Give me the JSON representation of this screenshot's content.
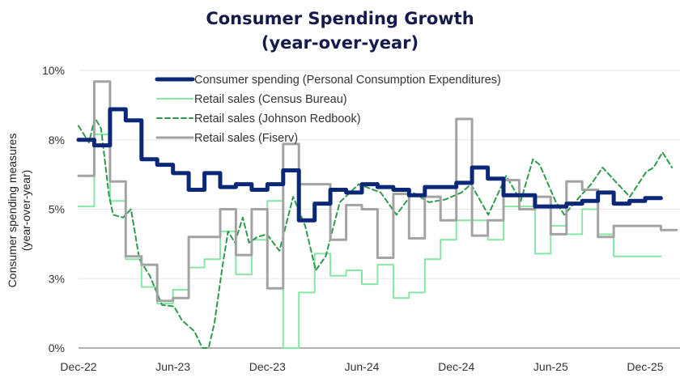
{
  "chart_data": {
    "type": "line",
    "title": [
      "Consumer Spending Growth",
      "(year-over-year)"
    ],
    "xlabel": "",
    "ylabel": [
      "Consumer spending measures",
      "(year-over-year)"
    ],
    "ylim": [
      0,
      10
    ],
    "yticks": [
      0,
      2.5,
      5,
      7.5,
      10
    ],
    "ytick_labels": [
      "0%",
      "3%",
      "5%",
      "8%",
      "10%"
    ],
    "xlim": [
      "2022-12-01",
      "2026-01-30"
    ],
    "xticks": [
      "2022-12-01",
      "2023-06-01",
      "2023-12-01",
      "2024-06-01",
      "2024-12-01",
      "2025-06-01",
      "2025-12-01"
    ],
    "xtick_labels": [
      "Dec-22",
      "Jun-23",
      "Dec-23",
      "Jun-24",
      "Dec-24",
      "Jun-25",
      "Dec-25"
    ],
    "grid": "horizontal",
    "legend_position": "top",
    "months": [
      "2022-12",
      "2023-01",
      "2023-02",
      "2023-03",
      "2023-04",
      "2023-05",
      "2023-06",
      "2023-07",
      "2023-08",
      "2023-09",
      "2023-10",
      "2023-11",
      "2023-12",
      "2024-01",
      "2024-02",
      "2024-03",
      "2024-04",
      "2024-05",
      "2024-06",
      "2024-07",
      "2024-08",
      "2024-09",
      "2024-10",
      "2024-11",
      "2024-12",
      "2025-01",
      "2025-02",
      "2025-03",
      "2025-04",
      "2025-05",
      "2025-06",
      "2025-07",
      "2025-08",
      "2025-09",
      "2025-10",
      "2025-11",
      "2025-12",
      "2026-01"
    ],
    "series": [
      {
        "name": "Consumer spending (Personal Consumption Expenditures)",
        "color": "#0b2878",
        "style": "solid-thick",
        "step": true,
        "values": [
          7.5,
          7.3,
          8.6,
          8.2,
          6.8,
          6.6,
          6.3,
          5.7,
          6.3,
          5.8,
          5.9,
          5.7,
          5.9,
          6.4,
          4.6,
          5.2,
          5.7,
          5.6,
          5.9,
          5.8,
          5.7,
          5.5,
          5.8,
          5.8,
          5.95,
          6.5,
          6.1,
          5.5,
          5.5,
          5.1,
          5.1,
          5.2,
          5.3,
          5.6,
          5.2,
          5.3,
          5.4
        ]
      },
      {
        "name": "Retail sales (Census Bureau)",
        "color": "#86e6a6",
        "style": "solid",
        "step": true,
        "values": [
          5.1,
          7.7,
          5.3,
          3.2,
          2.2,
          1.6,
          2.1,
          2.9,
          3.2,
          4.2,
          2.65,
          3.9,
          5.3,
          0,
          2.0,
          3.4,
          2.6,
          2.8,
          2.3,
          3.0,
          1.8,
          2.0,
          3.2,
          3.9,
          4.6,
          4.6,
          3.9,
          5.1,
          5.1,
          3.4,
          4.4,
          4.1,
          5.0,
          4.1,
          3.3,
          3.3,
          3.3
        ]
      },
      {
        "name": "Retail sales (Johnson Redbook)",
        "color": "#2f9a4c",
        "style": "dashed",
        "step": false,
        "points": [
          [
            "2022-12-01",
            8.0
          ],
          [
            "2022-12-21",
            7.4
          ],
          [
            "2023-01-02",
            8.3
          ],
          [
            "2023-01-14",
            7.9
          ],
          [
            "2023-01-29",
            5.5
          ],
          [
            "2023-02-07",
            4.8
          ],
          [
            "2023-02-26",
            4.7
          ],
          [
            "2023-03-11",
            5.0
          ],
          [
            "2023-03-27",
            3.2
          ],
          [
            "2023-04-17",
            2.6
          ],
          [
            "2023-05-10",
            1.55
          ],
          [
            "2023-06-03",
            1.5
          ],
          [
            "2023-06-18",
            1.0
          ],
          [
            "2023-07-12",
            0.6
          ],
          [
            "2023-07-27",
            0
          ],
          [
            "2023-08-09",
            0
          ],
          [
            "2023-08-20",
            0.9
          ],
          [
            "2023-09-05",
            2.9
          ],
          [
            "2023-09-16",
            4.2
          ],
          [
            "2023-09-29",
            3.8
          ],
          [
            "2023-10-14",
            4.7
          ],
          [
            "2023-10-26",
            3.8
          ],
          [
            "2023-11-12",
            4.0
          ],
          [
            "2023-11-30",
            4.1
          ],
          [
            "2023-12-24",
            3.5
          ],
          [
            "2024-01-20",
            5.45
          ],
          [
            "2024-02-13",
            4.4
          ],
          [
            "2024-03-03",
            2.8
          ],
          [
            "2024-03-22",
            3.3
          ],
          [
            "2024-04-19",
            5.25
          ],
          [
            "2024-05-25",
            5.9
          ],
          [
            "2024-07-07",
            5.6
          ],
          [
            "2024-08-07",
            4.8
          ],
          [
            "2024-09-08",
            5.6
          ],
          [
            "2024-10-09",
            5.25
          ],
          [
            "2024-11-10",
            5.35
          ],
          [
            "2024-12-11",
            5.6
          ],
          [
            "2024-12-29",
            5.9
          ],
          [
            "2025-02-02",
            4.8
          ],
          [
            "2025-03-06",
            6.2
          ],
          [
            "2025-04-04",
            5.3
          ],
          [
            "2025-04-27",
            6.8
          ],
          [
            "2025-05-10",
            6.6
          ],
          [
            "2025-06-11",
            5.25
          ],
          [
            "2025-06-27",
            4.8
          ],
          [
            "2025-07-17",
            5.25
          ],
          [
            "2025-08-18",
            5.9
          ],
          [
            "2025-09-10",
            6.5
          ],
          [
            "2025-10-09",
            5.9
          ],
          [
            "2025-11-02",
            5.45
          ],
          [
            "2025-12-03",
            6.35
          ],
          [
            "2025-12-17",
            6.5
          ],
          [
            "2026-01-04",
            7.05
          ],
          [
            "2026-01-22",
            6.5
          ]
        ]
      },
      {
        "name": "Retail sales (Fiserv)",
        "color": "#a3a3a3",
        "style": "solid",
        "step": true,
        "values": [
          6.2,
          9.6,
          6.0,
          3.3,
          3.0,
          1.7,
          1.8,
          4.0,
          4.0,
          5.0,
          3.35,
          5.0,
          2.15,
          7.35,
          5.9,
          5.9,
          3.9,
          5.15,
          5.0,
          3.25,
          5.55,
          3.95,
          5.45,
          4.6,
          8.25,
          4.05,
          4.6,
          6.05,
          5.0,
          5.45,
          4.1,
          6.0,
          5.7,
          4.0,
          4.4,
          4.4,
          4.4,
          4.25
        ]
      }
    ]
  }
}
